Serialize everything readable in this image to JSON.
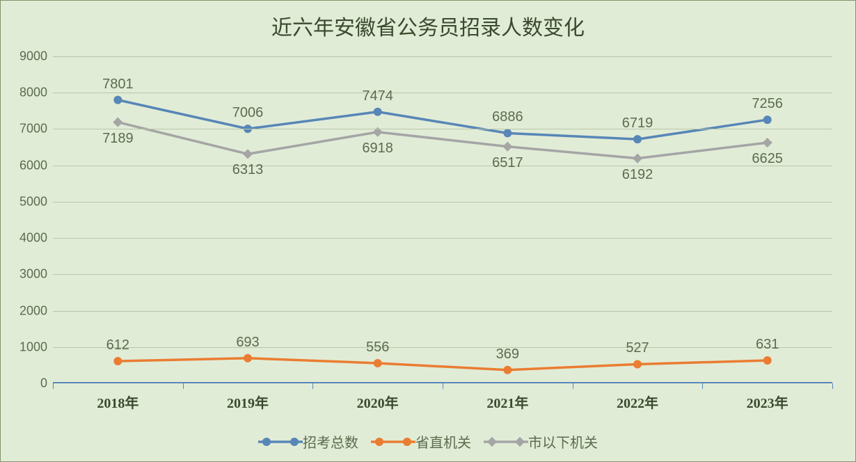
{
  "chart": {
    "type": "line",
    "title": "近六年安徽省公务员招录人数变化",
    "title_fontsize": 30,
    "background_color": "#e1ecd7",
    "border_color": "#7f946d",
    "text_color": "#5b6c4d",
    "grid_color": "#b8c6a9",
    "axis_line_color": "#5786b7",
    "categories": [
      "2018年",
      "2019年",
      "2020年",
      "2021年",
      "2022年",
      "2023年"
    ],
    "x_label_fontsize": 20,
    "x_label_fontweight": "bold",
    "y": {
      "min": 0,
      "max": 9000,
      "step": 1000,
      "label_fontsize": 18
    },
    "series": [
      {
        "key": "total",
        "name": "招考总数",
        "color": "#5786b7",
        "line_width": 3.5,
        "marker": "circle",
        "marker_size": 10,
        "label_position": "above",
        "values": [
          7801,
          7006,
          7474,
          6886,
          6719,
          7256
        ]
      },
      {
        "key": "provincial",
        "name": "省直机关",
        "color": "#ea7d31",
        "line_width": 3.5,
        "marker": "circle",
        "marker_size": 10,
        "label_position": "above",
        "values": [
          612,
          693,
          556,
          369,
          527,
          631
        ]
      },
      {
        "key": "municipal",
        "name": "市以下机关",
        "color": "#a5a5a5",
        "line_width": 3.5,
        "marker": "diamond",
        "marker_size": 10,
        "label_position": "below",
        "values": [
          7189,
          6313,
          6918,
          6517,
          6192,
          6625
        ]
      }
    ],
    "legend": {
      "position": "bottom",
      "fontsize": 20
    },
    "data_label_fontsize": 20
  }
}
